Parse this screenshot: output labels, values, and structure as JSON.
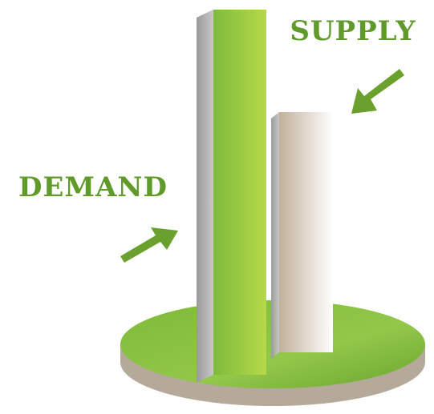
{
  "labels": {
    "supply": "SUPPLY",
    "demand": "DEMAND"
  }
}
